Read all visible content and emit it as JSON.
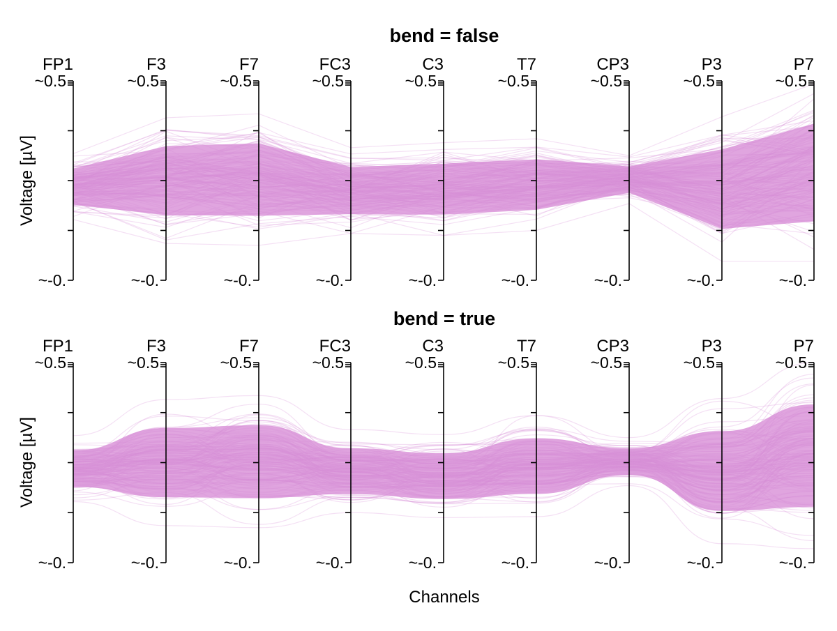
{
  "chart_data": [
    {
      "type": "parallel-coordinates",
      "title": "bend = false",
      "bend": false,
      "channels": [
        "FP1",
        "F3",
        "F7",
        "FC3",
        "C3",
        "T7",
        "CP3",
        "P3",
        "P7"
      ],
      "ylabel": "Voltage [µV]",
      "ytick_top_label": "~0.5",
      "ytick_bottom_label": "~-0.",
      "ylim": [
        -1,
        1
      ],
      "envelope_upper": [
        0.27,
        0.63,
        0.67,
        0.33,
        0.38,
        0.42,
        0.25,
        0.64,
        0.97
      ],
      "envelope_lower": [
        -0.39,
        -0.63,
        -0.65,
        -0.53,
        -0.55,
        -0.5,
        -0.23,
        -0.81,
        -0.81
      ],
      "legend": "none"
    },
    {
      "type": "parallel-coordinates",
      "title": "bend = true",
      "bend": true,
      "channels": [
        "FP1",
        "F3",
        "F7",
        "FC3",
        "C3",
        "T7",
        "CP3",
        "P3",
        "P7"
      ],
      "ylabel": "Voltage [µV]",
      "ytick_top_label": "~0.5",
      "ytick_bottom_label": "~-0.",
      "ylim": [
        -1,
        1
      ],
      "envelope_upper": [
        0.27,
        0.63,
        0.67,
        0.33,
        0.28,
        0.47,
        0.25,
        0.64,
        1.0
      ],
      "envelope_lower": [
        -0.39,
        -0.63,
        -0.65,
        -0.5,
        -0.55,
        -0.54,
        -0.23,
        -0.81,
        -0.86
      ],
      "legend": "none"
    }
  ],
  "xlabel": "Channels",
  "colors": {
    "trace": "#d98fd8",
    "fill": "#dea0dd",
    "axis": "#000000"
  }
}
